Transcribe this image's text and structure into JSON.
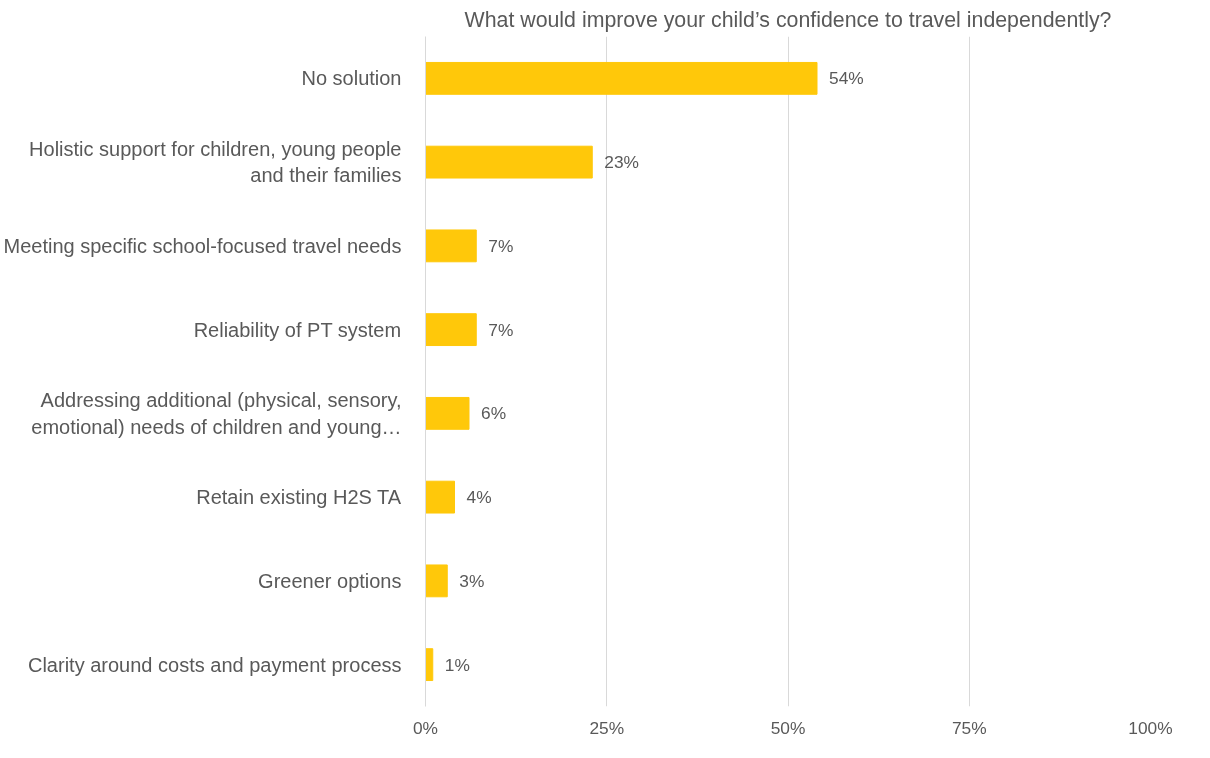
{
  "chart_data": {
    "type": "bar",
    "orientation": "horizontal",
    "title": "What would improve your child’s confidence to travel independently?",
    "categories": [
      "No solution",
      "Holistic support for children, young people and their families",
      "Meeting specific school-focused travel needs",
      "Reliability of PT system",
      "Addressing additional (physical, sensory, emotional) needs of children and young…",
      "Retain existing H2S TA",
      "Greener options",
      "Clarity around costs and payment process"
    ],
    "values": [
      54,
      23,
      7,
      7,
      6,
      4,
      3,
      1
    ],
    "value_labels": [
      "54%",
      "23%",
      "7%",
      "7%",
      "6%",
      "4%",
      "3%",
      "1%"
    ],
    "color": "#ffc80a",
    "xlim": [
      0,
      100
    ],
    "xticks": [
      {
        "value": 0,
        "label": "0%"
      },
      {
        "value": 25,
        "label": "25%"
      },
      {
        "value": 50,
        "label": "50%"
      },
      {
        "value": 75,
        "label": "75%"
      },
      {
        "value": 100,
        "label": "100%"
      }
    ],
    "grid": "x"
  }
}
